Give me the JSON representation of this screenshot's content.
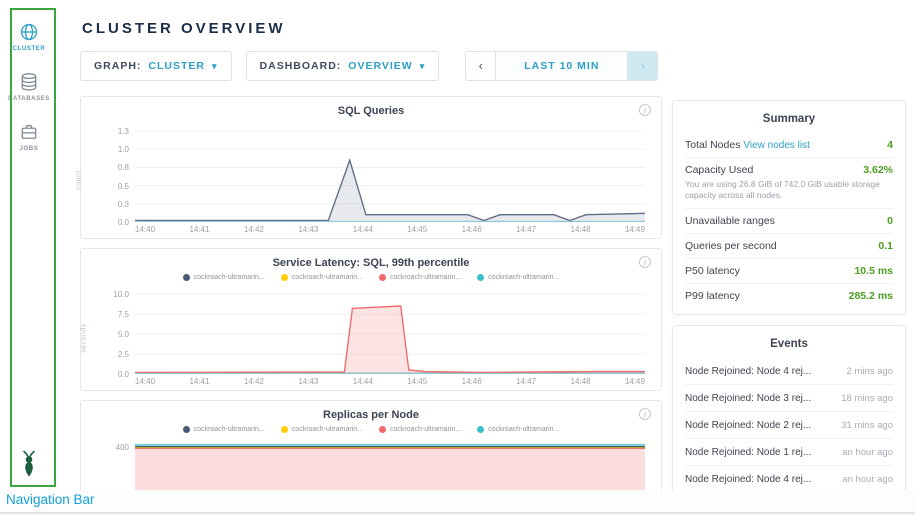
{
  "annotation": {
    "caption": "Navigation Bar"
  },
  "icons": {
    "caret": "▾",
    "info": "i"
  },
  "colors": {
    "accent": "#2b9fc6",
    "value_green": "#4b9e22",
    "annotation_green": "#3aa83e",
    "caption_blue": "#13a0d6",
    "title_navy": "#1c2d4a",
    "logo_green": "#1b5e3f"
  },
  "sidebar": {
    "items": [
      {
        "label": "CLUSTER",
        "icon": "cluster-globe",
        "active": true
      },
      {
        "label": "DATABASES",
        "icon": "databases",
        "active": false
      },
      {
        "label": "JOBS",
        "icon": "jobs",
        "active": false
      }
    ]
  },
  "header": {
    "title": "CLUSTER OVERVIEW"
  },
  "controls": {
    "graph": {
      "label": "GRAPH:",
      "value": "CLUSTER"
    },
    "dashboard": {
      "label": "DASHBOARD:",
      "value": "OVERVIEW"
    },
    "time_range": {
      "prev": "‹",
      "value": "LAST 10 MIN",
      "next": "›"
    }
  },
  "summary": {
    "title": "Summary",
    "rows": [
      {
        "label": "Total Nodes",
        "link": "View nodes list",
        "value": "4"
      },
      {
        "label": "Capacity Used",
        "value": "3.62%",
        "subtext": "You are using 26.8 GiB of 742.0 GiB usable storage capacity across all nodes."
      },
      {
        "label": "Unavailable ranges",
        "value": "0"
      },
      {
        "label": "Queries per second",
        "value": "0.1"
      },
      {
        "label": "P50 latency",
        "value": "10.5 ms"
      },
      {
        "label": "P99 latency",
        "value": "285.2 ms"
      }
    ]
  },
  "events": {
    "title": "Events",
    "items": [
      {
        "text": "Node Rejoined: Node 4 rej...",
        "time": "2 mins ago"
      },
      {
        "text": "Node Rejoined: Node 3 rej...",
        "time": "18 mins ago"
      },
      {
        "text": "Node Rejoined: Node 2 rej...",
        "time": "31 mins ago"
      },
      {
        "text": "Node Rejoined: Node 1 rej...",
        "time": "an hour ago"
      },
      {
        "text": "Node Rejoined: Node 4 rej...",
        "time": "an hour ago"
      }
    ]
  },
  "chart_data": [
    {
      "type": "line",
      "title": "SQL Queries",
      "ylabel": "count",
      "x_ticks": [
        "14:40",
        "14:41",
        "14:42",
        "14:43",
        "14:44",
        "14:45",
        "14:46",
        "14:47",
        "14:48",
        "14:49"
      ],
      "y_ticks": [
        {
          "v": 0,
          "label": "0.0"
        },
        {
          "v": 0.25,
          "label": "0.3"
        },
        {
          "v": 0.5,
          "label": "0.5"
        },
        {
          "v": 0.75,
          "label": "0.8"
        },
        {
          "v": 1.0,
          "label": "1.0"
        },
        {
          "v": 1.25,
          "label": "1.3"
        }
      ],
      "xrange": [
        0,
        9.5
      ],
      "ylim": [
        0,
        1.32
      ],
      "series": [
        {
          "color": "#5f6c87",
          "fill": "rgba(95,108,135,0.15)",
          "points": [
            [
              0,
              0.02
            ],
            [
              3.6,
              0.02
            ],
            [
              4.0,
              0.85
            ],
            [
              4.3,
              0.1
            ],
            [
              6.2,
              0.1
            ],
            [
              6.5,
              0.02
            ],
            [
              6.8,
              0.1
            ],
            [
              7.8,
              0.1
            ],
            [
              8.1,
              0.02
            ],
            [
              8.4,
              0.1
            ],
            [
              9.5,
              0.12
            ]
          ]
        }
      ]
    },
    {
      "type": "line",
      "title": "Service Latency: SQL, 99th percentile",
      "ylabel": "seconds",
      "legend": [
        {
          "label": "cockroach-ultramarin...",
          "color": "#475872"
        },
        {
          "label": "cockroach-ultramarin...",
          "color": "#ffcd02"
        },
        {
          "label": "cockroach-ultramarin...",
          "color": "#f16969"
        },
        {
          "label": "cockroach-ultramarin...",
          "color": "#3cbfcb"
        }
      ],
      "x_ticks": [
        "14:40",
        "14:41",
        "14:42",
        "14:43",
        "14:44",
        "14:45",
        "14:46",
        "14:47",
        "14:48",
        "14:49"
      ],
      "y_ticks": [
        {
          "v": 0,
          "label": "0.0"
        },
        {
          "v": 2.5,
          "label": "2.5"
        },
        {
          "v": 5,
          "label": "5.0"
        },
        {
          "v": 7.5,
          "label": "7.5"
        },
        {
          "v": 10,
          "label": "10.0"
        }
      ],
      "xrange": [
        0,
        9.5
      ],
      "ylim": [
        0,
        10.5
      ],
      "series": [
        {
          "color": "#475872",
          "points": [
            [
              0,
              0.08
            ],
            [
              9.5,
              0.08
            ]
          ]
        },
        {
          "color": "#ffcd02",
          "points": [
            [
              0,
              0.05
            ],
            [
              9.5,
              0.05
            ]
          ]
        },
        {
          "color": "#3cbfcb",
          "points": [
            [
              0,
              0.06
            ],
            [
              9.5,
              0.06
            ]
          ]
        },
        {
          "color": "#f16969",
          "fill": "rgba(241,105,105,0.18)",
          "points": [
            [
              0,
              0.2
            ],
            [
              3.9,
              0.25
            ],
            [
              4.05,
              8.2
            ],
            [
              4.5,
              8.35
            ],
            [
              4.95,
              8.5
            ],
            [
              5.1,
              0.5
            ],
            [
              5.4,
              0.3
            ],
            [
              6.5,
              0.2
            ],
            [
              7.5,
              0.25
            ],
            [
              8.5,
              0.3
            ],
            [
              9.5,
              0.3
            ]
          ]
        }
      ]
    },
    {
      "type": "line",
      "title": "Replicas per Node",
      "ylabel": "",
      "legend": [
        {
          "label": "cockroach-ultramarin...",
          "color": "#475872"
        },
        {
          "label": "cockroach-ultramarin...",
          "color": "#ffcd02"
        },
        {
          "label": "cockroach-ultramarin...",
          "color": "#f16969"
        },
        {
          "label": "cockroach-ultramarin...",
          "color": "#3cbfcb"
        }
      ],
      "x_ticks": [
        "14:40",
        "14:41",
        "14:42",
        "14:43",
        "14:44",
        "14:45",
        "14:46",
        "14:47",
        "14:48",
        "14:49"
      ],
      "y_ticks": [
        {
          "v": 400,
          "label": "400"
        }
      ],
      "xrange": [
        0,
        9.5
      ],
      "ylim": [
        0,
        430
      ],
      "series": [
        {
          "color": "#f16969",
          "fill": "rgba(241,105,105,0.22)",
          "points": [
            [
              0,
              391
            ],
            [
              9.5,
              391
            ]
          ]
        },
        {
          "color": "#ffcd02",
          "points": [
            [
              0,
              397
            ],
            [
              9.5,
              397
            ]
          ]
        },
        {
          "color": "#475872",
          "points": [
            [
              0,
              401
            ],
            [
              9.5,
              401
            ]
          ]
        },
        {
          "color": "#3cbfcb",
          "points": [
            [
              0,
              412
            ],
            [
              9.5,
              412
            ]
          ]
        }
      ]
    }
  ]
}
